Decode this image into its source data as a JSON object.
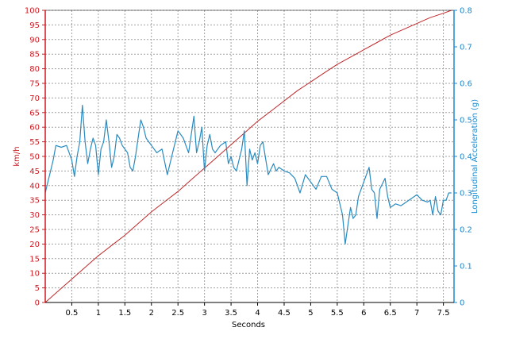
{
  "chart_data": {
    "type": "line",
    "xlabel": "Seconds",
    "ylabel_left": "km/h",
    "ylabel_right": "Longitudinal Acceleration (g)",
    "xlim": [
      0,
      7.7
    ],
    "ylim_left": [
      0,
      100
    ],
    "ylim_right": [
      0,
      0.8
    ],
    "x_ticks": [
      0.5,
      1,
      1.5,
      2,
      2.5,
      3,
      3.5,
      4,
      4.5,
      5,
      5.5,
      6,
      6.5,
      7,
      7.5
    ],
    "x_tick_labels": [
      "0.5",
      "1",
      "1.5",
      "2",
      "2.5",
      "3",
      "3.5",
      "4",
      "4.5",
      "5",
      "5.5",
      "6",
      "6.5",
      "7",
      "7.5"
    ],
    "y_left_ticks": [
      0,
      5,
      10,
      15,
      20,
      25,
      30,
      35,
      40,
      45,
      50,
      55,
      60,
      65,
      70,
      75,
      80,
      85,
      90,
      95,
      100
    ],
    "y_left_tick_labels": [
      "0",
      "5",
      "10",
      "15",
      "20",
      "25",
      "30",
      "35",
      "40",
      "45",
      "50",
      "55",
      "60",
      "65",
      "70",
      "75",
      "80",
      "85",
      "90",
      "95",
      "100"
    ],
    "y_right_ticks": [
      0,
      0.1,
      0.2,
      0.3,
      0.4,
      0.5,
      0.6,
      0.7,
      0.8
    ],
    "y_right_tick_labels": [
      "0",
      "0.1",
      "0.2",
      "0.3",
      "0.4",
      "0.5",
      "0.6",
      "0.7",
      "0.8"
    ],
    "grid": true,
    "colors": {
      "speed": "#c0282a",
      "accel": "#2a8bc0",
      "left_axis": "#d01820",
      "right_axis": "#1a8ad0",
      "grid": "#a0a0a0"
    },
    "series": [
      {
        "axis": "left",
        "x": [
          0,
          0.25,
          0.5,
          0.75,
          1,
          1.25,
          1.5,
          1.75,
          2,
          2.25,
          2.5,
          2.75,
          3,
          3.25,
          3.5,
          3.75,
          4,
          4.25,
          4.5,
          4.75,
          5,
          5.25,
          5.5,
          5.75,
          6,
          6.25,
          6.5,
          6.75,
          7,
          7.25,
          7.5,
          7.65
        ],
        "values": [
          0,
          4,
          8,
          12,
          16,
          19.5,
          23,
          27,
          31,
          34.5,
          38,
          42,
          46,
          50,
          54,
          58,
          62,
          65.5,
          69,
          72.5,
          75.5,
          78.5,
          81.5,
          84,
          86.5,
          89,
          91.5,
          93.5,
          95.5,
          97.5,
          99,
          100
        ]
      },
      {
        "axis": "right",
        "x": [
          0,
          0.05,
          0.1,
          0.15,
          0.2,
          0.3,
          0.4,
          0.5,
          0.55,
          0.6,
          0.65,
          0.7,
          0.75,
          0.8,
          0.85,
          0.9,
          0.95,
          1,
          1.05,
          1.1,
          1.15,
          1.2,
          1.25,
          1.3,
          1.35,
          1.4,
          1.45,
          1.5,
          1.55,
          1.6,
          1.65,
          1.7,
          1.75,
          1.8,
          1.85,
          1.9,
          1.95,
          2,
          2.1,
          2.2,
          2.3,
          2.4,
          2.5,
          2.55,
          2.6,
          2.65,
          2.7,
          2.8,
          2.85,
          2.9,
          2.95,
          3,
          3.05,
          3.1,
          3.15,
          3.2,
          3.3,
          3.4,
          3.45,
          3.5,
          3.55,
          3.6,
          3.65,
          3.7,
          3.75,
          3.8,
          3.85,
          3.9,
          3.95,
          4,
          4.05,
          4.1,
          4.2,
          4.3,
          4.35,
          4.4,
          4.5,
          4.6,
          4.7,
          4.8,
          4.9,
          5,
          5.1,
          5.2,
          5.3,
          5.4,
          5.5,
          5.6,
          5.65,
          5.7,
          5.75,
          5.8,
          5.85,
          5.9,
          6,
          6.1,
          6.15,
          6.2,
          6.25,
          6.3,
          6.4,
          6.45,
          6.5,
          6.6,
          6.7,
          6.8,
          6.9,
          7,
          7.1,
          7.2,
          7.25,
          7.3,
          7.35,
          7.4,
          7.45,
          7.5,
          7.55,
          7.6,
          7.65
        ],
        "values": [
          0.3,
          0.33,
          0.36,
          0.39,
          0.43,
          0.425,
          0.43,
          0.39,
          0.345,
          0.4,
          0.44,
          0.54,
          0.44,
          0.38,
          0.42,
          0.45,
          0.43,
          0.35,
          0.42,
          0.44,
          0.5,
          0.44,
          0.37,
          0.4,
          0.46,
          0.45,
          0.43,
          0.42,
          0.41,
          0.37,
          0.36,
          0.4,
          0.45,
          0.5,
          0.48,
          0.45,
          0.44,
          0.43,
          0.41,
          0.42,
          0.35,
          0.41,
          0.47,
          0.46,
          0.45,
          0.43,
          0.41,
          0.51,
          0.41,
          0.44,
          0.48,
          0.36,
          0.43,
          0.46,
          0.42,
          0.41,
          0.43,
          0.44,
          0.38,
          0.4,
          0.37,
          0.36,
          0.39,
          0.42,
          0.47,
          0.32,
          0.42,
          0.39,
          0.41,
          0.38,
          0.43,
          0.44,
          0.35,
          0.38,
          0.36,
          0.37,
          0.36,
          0.355,
          0.34,
          0.3,
          0.35,
          0.33,
          0.31,
          0.345,
          0.345,
          0.31,
          0.3,
          0.24,
          0.16,
          0.21,
          0.26,
          0.23,
          0.24,
          0.29,
          0.33,
          0.37,
          0.31,
          0.3,
          0.23,
          0.31,
          0.34,
          0.29,
          0.26,
          0.27,
          0.265,
          0.275,
          0.285,
          0.295,
          0.28,
          0.275,
          0.28,
          0.24,
          0.29,
          0.25,
          0.24,
          0.28,
          0.28,
          0.3,
          0.3
        ],
        "unit": "g"
      }
    ]
  }
}
